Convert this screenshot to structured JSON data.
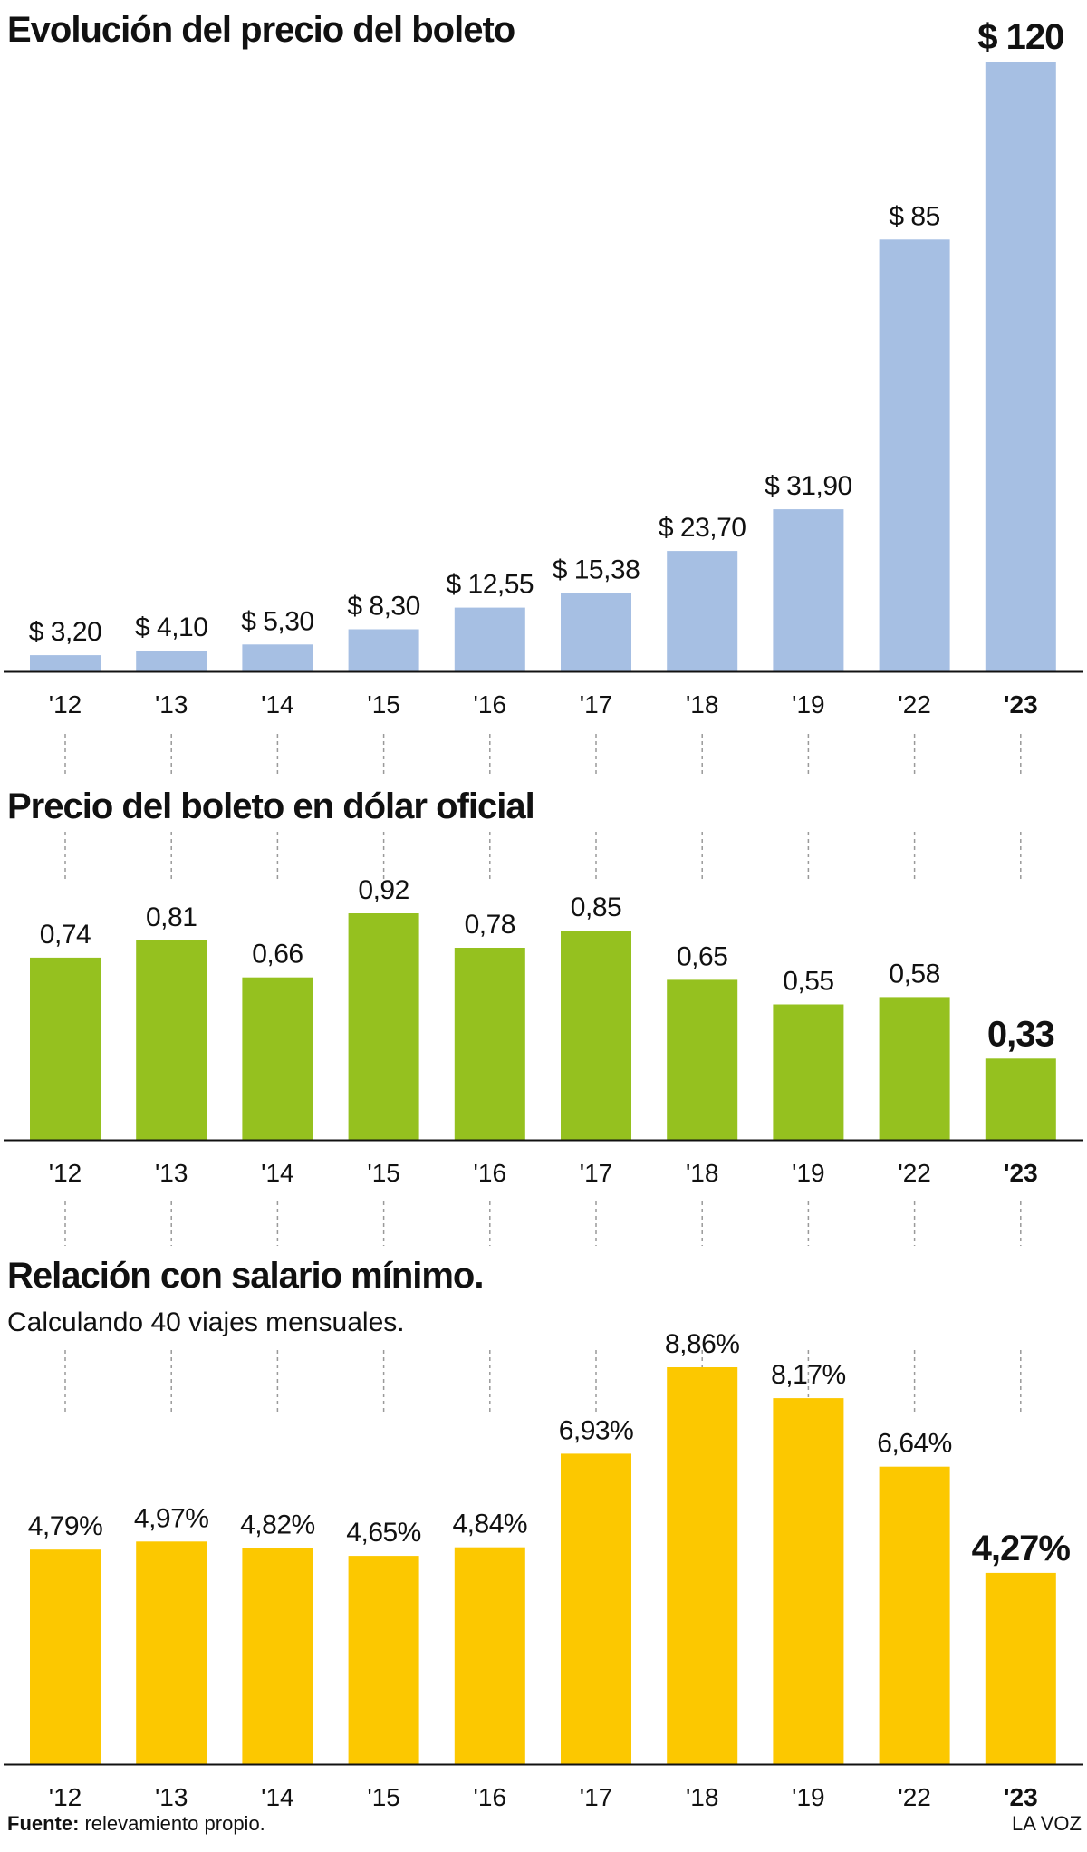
{
  "chart_data": [
    {
      "type": "bar",
      "title": "Evolución del precio del boleto",
      "categories": [
        "'12",
        "'13",
        "'14",
        "'15",
        "'16",
        "'17",
        "'18",
        "'19",
        "'22",
        "'23"
      ],
      "values": [
        3.2,
        4.1,
        5.3,
        8.3,
        12.55,
        15.38,
        23.7,
        31.9,
        85,
        120
      ],
      "labels": [
        "$ 3,20",
        "$ 4,10",
        "$ 5,30",
        "$ 8,30",
        "$ 12,55",
        "$ 15,38",
        "$ 23,70",
        "$ 31,90",
        "$ 85",
        "$ 120"
      ],
      "ylim": [
        0,
        120
      ],
      "color": "#a6bfe3",
      "highlight_index": 9
    },
    {
      "type": "bar",
      "title": "Precio del boleto en dólar oficial",
      "categories": [
        "'12",
        "'13",
        "'14",
        "'15",
        "'16",
        "'17",
        "'18",
        "'19",
        "'22",
        "'23"
      ],
      "values": [
        0.74,
        0.81,
        0.66,
        0.92,
        0.78,
        0.85,
        0.65,
        0.55,
        0.58,
        0.33
      ],
      "labels": [
        "0,74",
        "0,81",
        "0,66",
        "0,92",
        "0,78",
        "0,85",
        "0,65",
        "0,55",
        "0,58",
        "0,33"
      ],
      "ylim": [
        0,
        0.92
      ],
      "color": "#95c11f",
      "highlight_index": 9
    },
    {
      "type": "bar",
      "title": "Relación con salario mínimo.",
      "subtitle": "Calculando 40 viajes mensuales.",
      "categories": [
        "'12",
        "'13",
        "'14",
        "'15",
        "'16",
        "'17",
        "'18",
        "'19",
        "'22",
        "'23"
      ],
      "values": [
        4.79,
        4.97,
        4.82,
        4.65,
        4.84,
        6.93,
        8.86,
        8.17,
        6.64,
        4.27
      ],
      "labels": [
        "4,79%",
        "4,97%",
        "4,82%",
        "4,65%",
        "4,84%",
        "6,93%",
        "8,86%",
        "8,17%",
        "6,64%",
        "4,27%"
      ],
      "ylim": [
        0,
        8.86
      ],
      "color": "#fcc800",
      "highlight_index": 9
    }
  ],
  "footer": {
    "source_label": "Fuente:",
    "source_text": "relevamiento propio.",
    "brand": "LA VOZ"
  },
  "colors": {
    "axis": "#111111",
    "guide": "#9a9a9a"
  }
}
